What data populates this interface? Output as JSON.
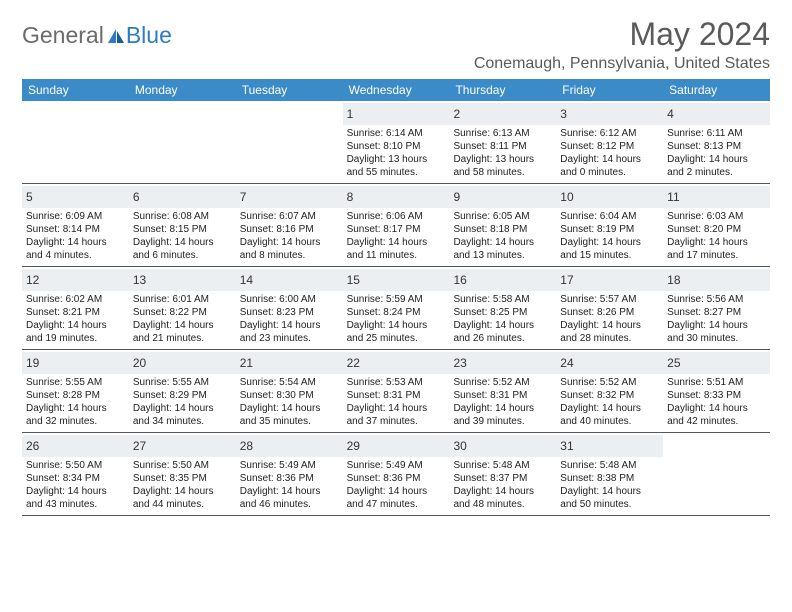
{
  "brand": {
    "general": "General",
    "blue": "Blue"
  },
  "title": "May 2024",
  "location": "Conemaugh, Pennsylvania, United States",
  "header_bg": "#3b8bc9",
  "daynum_bg": "#eceff1",
  "border_color": "#555555",
  "weekdays": [
    "Sunday",
    "Monday",
    "Tuesday",
    "Wednesday",
    "Thursday",
    "Friday",
    "Saturday"
  ],
  "weeks": [
    [
      {
        "n": "",
        "sr": "",
        "ss": "",
        "dl": ""
      },
      {
        "n": "",
        "sr": "",
        "ss": "",
        "dl": ""
      },
      {
        "n": "",
        "sr": "",
        "ss": "",
        "dl": ""
      },
      {
        "n": "1",
        "sr": "Sunrise: 6:14 AM",
        "ss": "Sunset: 8:10 PM",
        "dl": "Daylight: 13 hours and 55 minutes."
      },
      {
        "n": "2",
        "sr": "Sunrise: 6:13 AM",
        "ss": "Sunset: 8:11 PM",
        "dl": "Daylight: 13 hours and 58 minutes."
      },
      {
        "n": "3",
        "sr": "Sunrise: 6:12 AM",
        "ss": "Sunset: 8:12 PM",
        "dl": "Daylight: 14 hours and 0 minutes."
      },
      {
        "n": "4",
        "sr": "Sunrise: 6:11 AM",
        "ss": "Sunset: 8:13 PM",
        "dl": "Daylight: 14 hours and 2 minutes."
      }
    ],
    [
      {
        "n": "5",
        "sr": "Sunrise: 6:09 AM",
        "ss": "Sunset: 8:14 PM",
        "dl": "Daylight: 14 hours and 4 minutes."
      },
      {
        "n": "6",
        "sr": "Sunrise: 6:08 AM",
        "ss": "Sunset: 8:15 PM",
        "dl": "Daylight: 14 hours and 6 minutes."
      },
      {
        "n": "7",
        "sr": "Sunrise: 6:07 AM",
        "ss": "Sunset: 8:16 PM",
        "dl": "Daylight: 14 hours and 8 minutes."
      },
      {
        "n": "8",
        "sr": "Sunrise: 6:06 AM",
        "ss": "Sunset: 8:17 PM",
        "dl": "Daylight: 14 hours and 11 minutes."
      },
      {
        "n": "9",
        "sr": "Sunrise: 6:05 AM",
        "ss": "Sunset: 8:18 PM",
        "dl": "Daylight: 14 hours and 13 minutes."
      },
      {
        "n": "10",
        "sr": "Sunrise: 6:04 AM",
        "ss": "Sunset: 8:19 PM",
        "dl": "Daylight: 14 hours and 15 minutes."
      },
      {
        "n": "11",
        "sr": "Sunrise: 6:03 AM",
        "ss": "Sunset: 8:20 PM",
        "dl": "Daylight: 14 hours and 17 minutes."
      }
    ],
    [
      {
        "n": "12",
        "sr": "Sunrise: 6:02 AM",
        "ss": "Sunset: 8:21 PM",
        "dl": "Daylight: 14 hours and 19 minutes."
      },
      {
        "n": "13",
        "sr": "Sunrise: 6:01 AM",
        "ss": "Sunset: 8:22 PM",
        "dl": "Daylight: 14 hours and 21 minutes."
      },
      {
        "n": "14",
        "sr": "Sunrise: 6:00 AM",
        "ss": "Sunset: 8:23 PM",
        "dl": "Daylight: 14 hours and 23 minutes."
      },
      {
        "n": "15",
        "sr": "Sunrise: 5:59 AM",
        "ss": "Sunset: 8:24 PM",
        "dl": "Daylight: 14 hours and 25 minutes."
      },
      {
        "n": "16",
        "sr": "Sunrise: 5:58 AM",
        "ss": "Sunset: 8:25 PM",
        "dl": "Daylight: 14 hours and 26 minutes."
      },
      {
        "n": "17",
        "sr": "Sunrise: 5:57 AM",
        "ss": "Sunset: 8:26 PM",
        "dl": "Daylight: 14 hours and 28 minutes."
      },
      {
        "n": "18",
        "sr": "Sunrise: 5:56 AM",
        "ss": "Sunset: 8:27 PM",
        "dl": "Daylight: 14 hours and 30 minutes."
      }
    ],
    [
      {
        "n": "19",
        "sr": "Sunrise: 5:55 AM",
        "ss": "Sunset: 8:28 PM",
        "dl": "Daylight: 14 hours and 32 minutes."
      },
      {
        "n": "20",
        "sr": "Sunrise: 5:55 AM",
        "ss": "Sunset: 8:29 PM",
        "dl": "Daylight: 14 hours and 34 minutes."
      },
      {
        "n": "21",
        "sr": "Sunrise: 5:54 AM",
        "ss": "Sunset: 8:30 PM",
        "dl": "Daylight: 14 hours and 35 minutes."
      },
      {
        "n": "22",
        "sr": "Sunrise: 5:53 AM",
        "ss": "Sunset: 8:31 PM",
        "dl": "Daylight: 14 hours and 37 minutes."
      },
      {
        "n": "23",
        "sr": "Sunrise: 5:52 AM",
        "ss": "Sunset: 8:31 PM",
        "dl": "Daylight: 14 hours and 39 minutes."
      },
      {
        "n": "24",
        "sr": "Sunrise: 5:52 AM",
        "ss": "Sunset: 8:32 PM",
        "dl": "Daylight: 14 hours and 40 minutes."
      },
      {
        "n": "25",
        "sr": "Sunrise: 5:51 AM",
        "ss": "Sunset: 8:33 PM",
        "dl": "Daylight: 14 hours and 42 minutes."
      }
    ],
    [
      {
        "n": "26",
        "sr": "Sunrise: 5:50 AM",
        "ss": "Sunset: 8:34 PM",
        "dl": "Daylight: 14 hours and 43 minutes."
      },
      {
        "n": "27",
        "sr": "Sunrise: 5:50 AM",
        "ss": "Sunset: 8:35 PM",
        "dl": "Daylight: 14 hours and 44 minutes."
      },
      {
        "n": "28",
        "sr": "Sunrise: 5:49 AM",
        "ss": "Sunset: 8:36 PM",
        "dl": "Daylight: 14 hours and 46 minutes."
      },
      {
        "n": "29",
        "sr": "Sunrise: 5:49 AM",
        "ss": "Sunset: 8:36 PM",
        "dl": "Daylight: 14 hours and 47 minutes."
      },
      {
        "n": "30",
        "sr": "Sunrise: 5:48 AM",
        "ss": "Sunset: 8:37 PM",
        "dl": "Daylight: 14 hours and 48 minutes."
      },
      {
        "n": "31",
        "sr": "Sunrise: 5:48 AM",
        "ss": "Sunset: 8:38 PM",
        "dl": "Daylight: 14 hours and 50 minutes."
      },
      {
        "n": "",
        "sr": "",
        "ss": "",
        "dl": ""
      }
    ]
  ]
}
